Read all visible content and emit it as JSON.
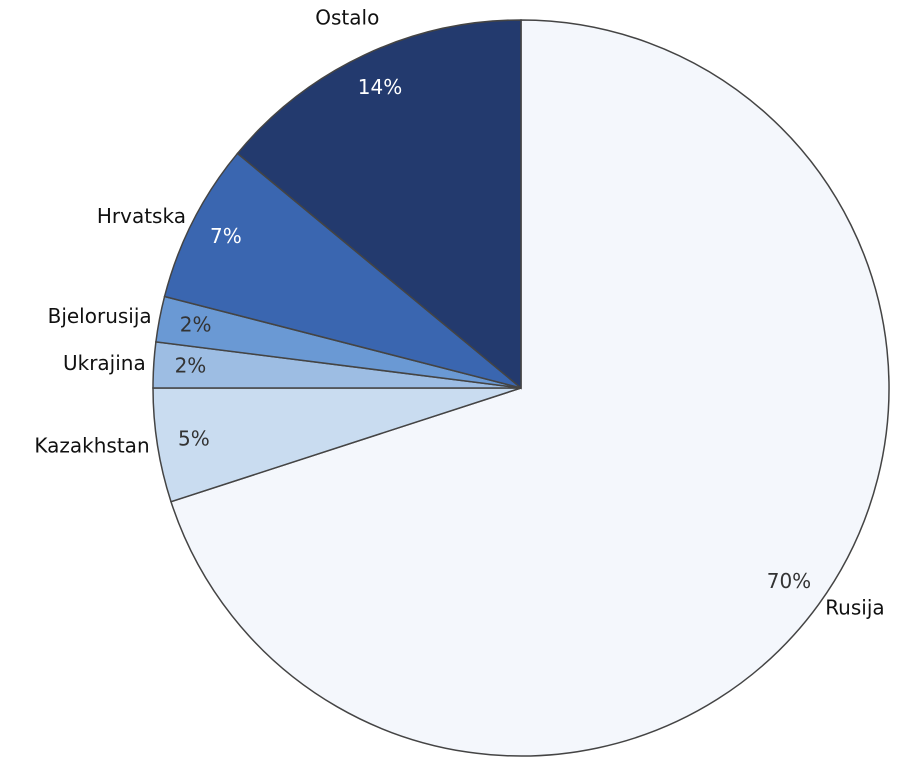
{
  "chart_data": {
    "type": "pie",
    "categories": [
      "Rusija",
      "Kazakhstan",
      "Ukrajina",
      "Bjelorusija",
      "Hrvatska",
      "Ostalo"
    ],
    "values": [
      70,
      5,
      2,
      2,
      7,
      14
    ],
    "value_labels": [
      "70%",
      "5%",
      "2%",
      "2%",
      "7%",
      "14%"
    ],
    "colors": [
      "#f4f7fc",
      "#c9dcf0",
      "#9dbde3",
      "#6a99d4",
      "#3a66b0",
      "#233a6e"
    ]
  }
}
